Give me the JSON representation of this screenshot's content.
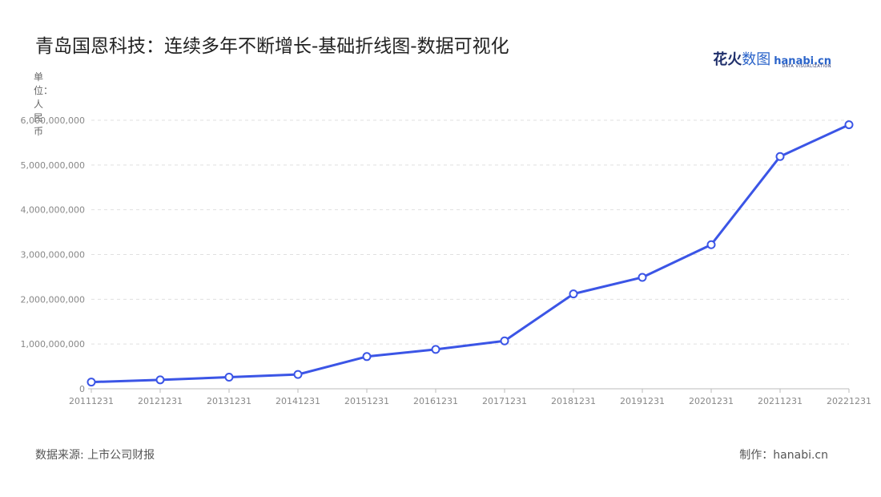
{
  "header": {
    "title": "青岛国恩科技：连续多年不断增长-基础折线图-数据可视化",
    "brand_cn_a": "花火",
    "brand_cn_b": "数图",
    "brand_en": "hanabi.cn",
    "brand_sub": "DATA VISUALIZATION"
  },
  "footer": {
    "source": "数据来源: 上市公司财报",
    "credit": "制作：hanabi.cn"
  },
  "colors": {
    "line": "#3b55e6",
    "grid": "#e0e0e0",
    "axis": "#bbbbbb",
    "marker_fill": "#ffffff"
  },
  "chart_data": {
    "type": "line",
    "title": "青岛国恩科技：连续多年不断增长-基础折线图-数据可视化",
    "ylabel": "单位：人民币",
    "xlabel": "",
    "categories": [
      "20111231",
      "20121231",
      "20131231",
      "20141231",
      "20151231",
      "20161231",
      "20171231",
      "20181231",
      "20191231",
      "20201231",
      "20211231",
      "20221231"
    ],
    "values": [
      150000000,
      200000000,
      260000000,
      320000000,
      720000000,
      880000000,
      1070000000,
      2120000000,
      2490000000,
      3220000000,
      5190000000,
      5900000000
    ],
    "ylim": [
      0,
      6000000000
    ],
    "yticks": [
      0,
      1000000000,
      2000000000,
      3000000000,
      4000000000,
      5000000000,
      6000000000
    ],
    "ytick_labels": [
      "0",
      "1,000,000,000",
      "2,000,000,000",
      "3,000,000,000",
      "4,000,000,000",
      "5,000,000,000",
      "6,000,000,000"
    ],
    "grid": true,
    "legend": "none"
  }
}
